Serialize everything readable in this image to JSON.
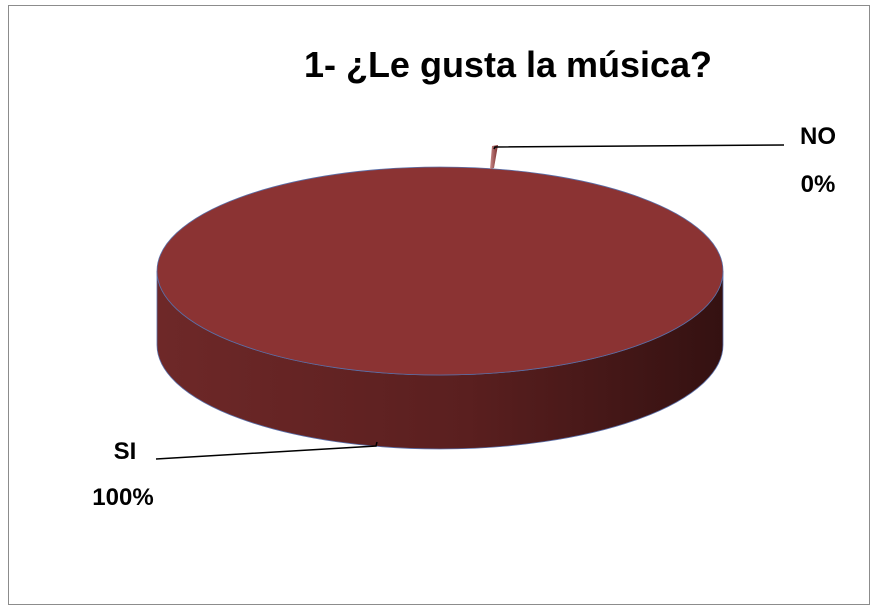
{
  "chart_data": {
    "type": "pie",
    "style": "3d",
    "title": "1- ¿Le gusta la música?",
    "categories": [
      "NO",
      "SI"
    ],
    "values": [
      0,
      100
    ],
    "data_labels": [
      {
        "category": "NO",
        "percent": "0%"
      },
      {
        "category": "SI",
        "percent": "100%"
      }
    ],
    "colors": {
      "slice_top": "#8b3333",
      "slice_side_light": "#7a2c2c",
      "slice_side_dark": "#3a1414",
      "edge": "#5b6fa8",
      "leader_line": "#000000",
      "frame_border": "#8c8c8c"
    },
    "legend": "none"
  }
}
